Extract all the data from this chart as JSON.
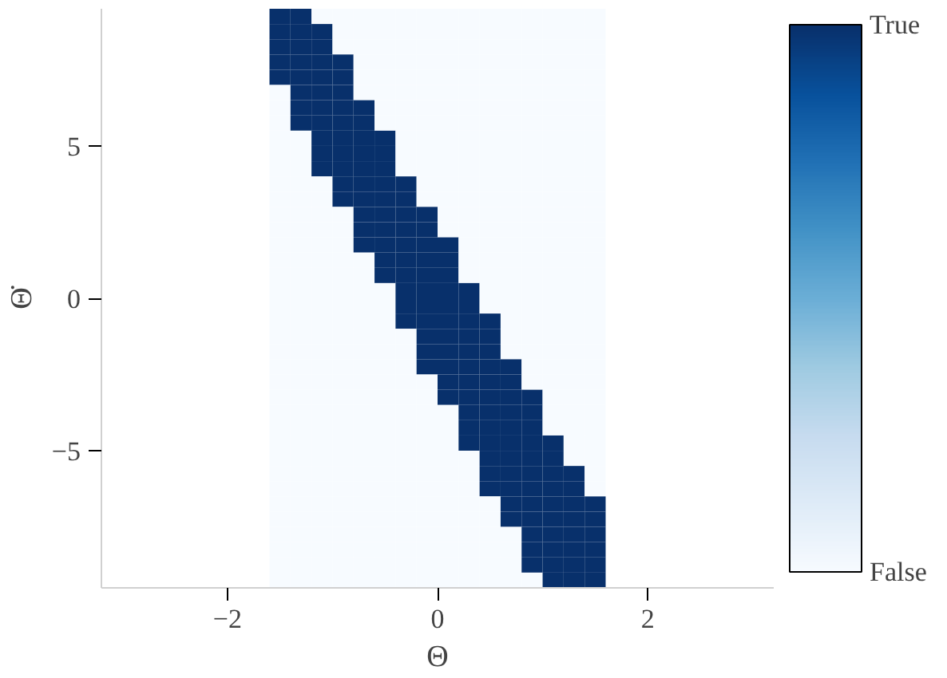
{
  "chart_data": {
    "type": "heatmap",
    "xlabel": "Θ",
    "ylabel": "Θ̇",
    "x": [
      -1.5,
      -1.3,
      -1.1,
      -0.9,
      -0.7,
      -0.5,
      -0.3,
      -0.1,
      0.1,
      0.3,
      0.5,
      0.7,
      0.9,
      1.1,
      1.3,
      1.5
    ],
    "y": [
      9.25,
      8.75,
      8.25,
      7.75,
      7.25,
      6.75,
      6.25,
      5.75,
      5.25,
      4.75,
      4.25,
      3.75,
      3.25,
      2.75,
      2.25,
      1.75,
      1.25,
      0.75,
      0.25,
      -0.25,
      -0.75,
      -1.25,
      -1.75,
      -2.25,
      -2.75,
      -3.25,
      -3.75,
      -4.25,
      -4.75,
      -5.25,
      -5.75,
      -6.25,
      -6.75,
      -7.25,
      -7.75,
      -8.25,
      -8.75,
      -9.25
    ],
    "cells": [
      [
        1,
        1,
        0,
        0,
        0,
        0,
        0,
        0,
        0,
        0,
        0,
        0,
        0,
        0,
        0,
        0
      ],
      [
        1,
        1,
        1,
        0,
        0,
        0,
        0,
        0,
        0,
        0,
        0,
        0,
        0,
        0,
        0,
        0
      ],
      [
        1,
        1,
        1,
        0,
        0,
        0,
        0,
        0,
        0,
        0,
        0,
        0,
        0,
        0,
        0,
        0
      ],
      [
        1,
        1,
        1,
        1,
        0,
        0,
        0,
        0,
        0,
        0,
        0,
        0,
        0,
        0,
        0,
        0
      ],
      [
        1,
        1,
        1,
        1,
        0,
        0,
        0,
        0,
        0,
        0,
        0,
        0,
        0,
        0,
        0,
        0
      ],
      [
        0,
        1,
        1,
        1,
        0,
        0,
        0,
        0,
        0,
        0,
        0,
        0,
        0,
        0,
        0,
        0
      ],
      [
        0,
        1,
        1,
        1,
        1,
        0,
        0,
        0,
        0,
        0,
        0,
        0,
        0,
        0,
        0,
        0
      ],
      [
        0,
        1,
        1,
        1,
        1,
        0,
        0,
        0,
        0,
        0,
        0,
        0,
        0,
        0,
        0,
        0
      ],
      [
        0,
        0,
        1,
        1,
        1,
        1,
        0,
        0,
        0,
        0,
        0,
        0,
        0,
        0,
        0,
        0
      ],
      [
        0,
        0,
        1,
        1,
        1,
        1,
        0,
        0,
        0,
        0,
        0,
        0,
        0,
        0,
        0,
        0
      ],
      [
        0,
        0,
        1,
        1,
        1,
        1,
        0,
        0,
        0,
        0,
        0,
        0,
        0,
        0,
        0,
        0
      ],
      [
        0,
        0,
        0,
        1,
        1,
        1,
        1,
        0,
        0,
        0,
        0,
        0,
        0,
        0,
        0,
        0
      ],
      [
        0,
        0,
        0,
        1,
        1,
        1,
        1,
        0,
        0,
        0,
        0,
        0,
        0,
        0,
        0,
        0
      ],
      [
        0,
        0,
        0,
        0,
        1,
        1,
        1,
        1,
        0,
        0,
        0,
        0,
        0,
        0,
        0,
        0
      ],
      [
        0,
        0,
        0,
        0,
        1,
        1,
        1,
        1,
        0,
        0,
        0,
        0,
        0,
        0,
        0,
        0
      ],
      [
        0,
        0,
        0,
        0,
        1,
        1,
        1,
        1,
        1,
        0,
        0,
        0,
        0,
        0,
        0,
        0
      ],
      [
        0,
        0,
        0,
        0,
        0,
        1,
        1,
        1,
        1,
        0,
        0,
        0,
        0,
        0,
        0,
        0
      ],
      [
        0,
        0,
        0,
        0,
        0,
        1,
        1,
        1,
        1,
        0,
        0,
        0,
        0,
        0,
        0,
        0
      ],
      [
        0,
        0,
        0,
        0,
        0,
        0,
        1,
        1,
        1,
        1,
        0,
        0,
        0,
        0,
        0,
        0
      ],
      [
        0,
        0,
        0,
        0,
        0,
        0,
        1,
        1,
        1,
        1,
        0,
        0,
        0,
        0,
        0,
        0
      ],
      [
        0,
        0,
        0,
        0,
        0,
        0,
        1,
        1,
        1,
        1,
        1,
        0,
        0,
        0,
        0,
        0
      ],
      [
        0,
        0,
        0,
        0,
        0,
        0,
        0,
        1,
        1,
        1,
        1,
        0,
        0,
        0,
        0,
        0
      ],
      [
        0,
        0,
        0,
        0,
        0,
        0,
        0,
        1,
        1,
        1,
        1,
        0,
        0,
        0,
        0,
        0
      ],
      [
        0,
        0,
        0,
        0,
        0,
        0,
        0,
        1,
        1,
        1,
        1,
        1,
        0,
        0,
        0,
        0
      ],
      [
        0,
        0,
        0,
        0,
        0,
        0,
        0,
        0,
        1,
        1,
        1,
        1,
        0,
        0,
        0,
        0
      ],
      [
        0,
        0,
        0,
        0,
        0,
        0,
        0,
        0,
        1,
        1,
        1,
        1,
        1,
        0,
        0,
        0
      ],
      [
        0,
        0,
        0,
        0,
        0,
        0,
        0,
        0,
        0,
        1,
        1,
        1,
        1,
        0,
        0,
        0
      ],
      [
        0,
        0,
        0,
        0,
        0,
        0,
        0,
        0,
        0,
        1,
        1,
        1,
        1,
        0,
        0,
        0
      ],
      [
        0,
        0,
        0,
        0,
        0,
        0,
        0,
        0,
        0,
        1,
        1,
        1,
        1,
        1,
        0,
        0
      ],
      [
        0,
        0,
        0,
        0,
        0,
        0,
        0,
        0,
        0,
        0,
        1,
        1,
        1,
        1,
        0,
        0
      ],
      [
        0,
        0,
        0,
        0,
        0,
        0,
        0,
        0,
        0,
        0,
        1,
        1,
        1,
        1,
        1,
        0
      ],
      [
        0,
        0,
        0,
        0,
        0,
        0,
        0,
        0,
        0,
        0,
        1,
        1,
        1,
        1,
        1,
        0
      ],
      [
        0,
        0,
        0,
        0,
        0,
        0,
        0,
        0,
        0,
        0,
        0,
        1,
        1,
        1,
        1,
        1
      ],
      [
        0,
        0,
        0,
        0,
        0,
        0,
        0,
        0,
        0,
        0,
        0,
        1,
        1,
        1,
        1,
        1
      ],
      [
        0,
        0,
        0,
        0,
        0,
        0,
        0,
        0,
        0,
        0,
        0,
        0,
        1,
        1,
        1,
        1
      ],
      [
        0,
        0,
        0,
        0,
        0,
        0,
        0,
        0,
        0,
        0,
        0,
        0,
        1,
        1,
        1,
        1
      ],
      [
        0,
        0,
        0,
        0,
        0,
        0,
        0,
        0,
        0,
        0,
        0,
        0,
        1,
        1,
        1,
        1
      ],
      [
        0,
        0,
        0,
        0,
        0,
        0,
        0,
        0,
        0,
        0,
        0,
        0,
        0,
        1,
        1,
        1
      ]
    ],
    "clim": [
      0,
      1
    ],
    "cticks": [
      {
        "value": 0,
        "label": "False"
      },
      {
        "value": 1,
        "label": "True"
      }
    ],
    "xlim": [
      -3.2,
      3.2
    ],
    "ylim": [
      -9.5,
      9.5
    ],
    "xticks": [
      {
        "value": -2,
        "label": "−2"
      },
      0,
      2
    ],
    "yticks": [
      {
        "value": -5,
        "label": "−5"
      },
      0,
      5
    ]
  }
}
